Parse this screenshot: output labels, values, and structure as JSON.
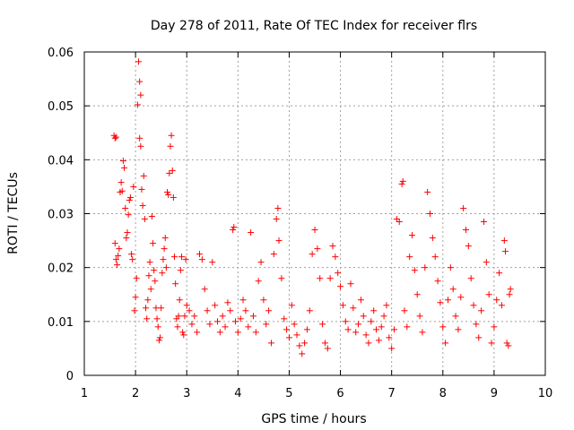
{
  "chart_data": {
    "type": "scatter",
    "title": "Day 278 of 2011, Rate Of TEC Index for receiver flrs",
    "xlabel": "GPS time / hours",
    "ylabel": "ROTI / TECUs",
    "xlim": [
      1,
      10
    ],
    "ylim": [
      0,
      0.06
    ],
    "xticks": [
      1,
      2,
      3,
      4,
      5,
      6,
      7,
      8,
      9,
      10
    ],
    "xtick_labels": [
      "1",
      "2",
      "3",
      "4",
      "5",
      "6",
      "7",
      "8",
      "9",
      "10"
    ],
    "yticks": [
      0,
      0.01,
      0.02,
      0.03,
      0.04,
      0.05,
      0.06
    ],
    "ytick_labels": [
      "0",
      "0.01",
      "0.02",
      "0.03",
      "0.04",
      "0.05",
      "0.06"
    ],
    "grid": true,
    "marker": "plus",
    "color": "#ff0000",
    "series": [
      {
        "name": "flrs",
        "points": [
          [
            1.58,
            0.0445
          ],
          [
            1.6,
            0.044
          ],
          [
            1.62,
            0.0442
          ],
          [
            1.6,
            0.0245
          ],
          [
            1.62,
            0.0215
          ],
          [
            1.64,
            0.0205
          ],
          [
            1.66,
            0.0222
          ],
          [
            1.68,
            0.0235
          ],
          [
            1.7,
            0.034
          ],
          [
            1.72,
            0.0358
          ],
          [
            1.74,
            0.0342
          ],
          [
            1.76,
            0.0398
          ],
          [
            1.78,
            0.0385
          ],
          [
            1.8,
            0.031
          ],
          [
            1.82,
            0.0255
          ],
          [
            1.84,
            0.0265
          ],
          [
            1.86,
            0.0298
          ],
          [
            1.88,
            0.0325
          ],
          [
            1.9,
            0.033
          ],
          [
            1.92,
            0.0225
          ],
          [
            1.94,
            0.0215
          ],
          [
            1.96,
            0.035
          ],
          [
            1.98,
            0.012
          ],
          [
            2.0,
            0.0145
          ],
          [
            2.02,
            0.018
          ],
          [
            2.04,
            0.0502
          ],
          [
            2.06,
            0.0582
          ],
          [
            2.08,
            0.0545
          ],
          [
            2.1,
            0.052
          ],
          [
            2.08,
            0.044
          ],
          [
            2.1,
            0.0425
          ],
          [
            2.12,
            0.0345
          ],
          [
            2.14,
            0.0315
          ],
          [
            2.16,
            0.037
          ],
          [
            2.18,
            0.029
          ],
          [
            2.2,
            0.0125
          ],
          [
            2.22,
            0.0105
          ],
          [
            2.24,
            0.014
          ],
          [
            2.26,
            0.0185
          ],
          [
            2.28,
            0.021
          ],
          [
            2.3,
            0.016
          ],
          [
            2.32,
            0.0295
          ],
          [
            2.34,
            0.0245
          ],
          [
            2.36,
            0.0195
          ],
          [
            2.38,
            0.0175
          ],
          [
            2.4,
            0.0125
          ],
          [
            2.42,
            0.0105
          ],
          [
            2.44,
            0.009
          ],
          [
            2.46,
            0.0065
          ],
          [
            2.48,
            0.007
          ],
          [
            2.5,
            0.0125
          ],
          [
            2.52,
            0.019
          ],
          [
            2.54,
            0.0215
          ],
          [
            2.56,
            0.0235
          ],
          [
            2.58,
            0.0255
          ],
          [
            2.6,
            0.02
          ],
          [
            2.62,
            0.034
          ],
          [
            2.64,
            0.0335
          ],
          [
            2.66,
            0.0375
          ],
          [
            2.68,
            0.0425
          ],
          [
            2.7,
            0.0445
          ],
          [
            2.72,
            0.038
          ],
          [
            2.74,
            0.033
          ],
          [
            2.76,
            0.022
          ],
          [
            2.78,
            0.017
          ],
          [
            2.8,
            0.0105
          ],
          [
            2.82,
            0.009
          ],
          [
            2.84,
            0.011
          ],
          [
            2.86,
            0.014
          ],
          [
            2.88,
            0.0195
          ],
          [
            2.9,
            0.022
          ],
          [
            2.92,
            0.008
          ],
          [
            2.94,
            0.0075
          ],
          [
            2.96,
            0.011
          ],
          [
            2.98,
            0.0215
          ],
          [
            3.0,
            0.013
          ],
          [
            3.05,
            0.012
          ],
          [
            3.1,
            0.0095
          ],
          [
            3.15,
            0.011
          ],
          [
            3.2,
            0.008
          ],
          [
            3.25,
            0.0225
          ],
          [
            3.3,
            0.0215
          ],
          [
            3.35,
            0.016
          ],
          [
            3.4,
            0.012
          ],
          [
            3.45,
            0.0095
          ],
          [
            3.5,
            0.021
          ],
          [
            3.55,
            0.013
          ],
          [
            3.6,
            0.01
          ],
          [
            3.65,
            0.008
          ],
          [
            3.7,
            0.011
          ],
          [
            3.75,
            0.009
          ],
          [
            3.8,
            0.0135
          ],
          [
            3.85,
            0.012
          ],
          [
            3.9,
            0.027
          ],
          [
            3.92,
            0.0275
          ],
          [
            3.95,
            0.01
          ],
          [
            4.0,
            0.008
          ],
          [
            4.05,
            0.0105
          ],
          [
            4.1,
            0.014
          ],
          [
            4.15,
            0.012
          ],
          [
            4.2,
            0.009
          ],
          [
            4.25,
            0.0265
          ],
          [
            4.3,
            0.011
          ],
          [
            4.35,
            0.008
          ],
          [
            4.4,
            0.0175
          ],
          [
            4.45,
            0.021
          ],
          [
            4.5,
            0.014
          ],
          [
            4.55,
            0.0095
          ],
          [
            4.6,
            0.012
          ],
          [
            4.65,
            0.006
          ],
          [
            4.7,
            0.0225
          ],
          [
            4.75,
            0.029
          ],
          [
            4.78,
            0.031
          ],
          [
            4.8,
            0.025
          ],
          [
            4.85,
            0.018
          ],
          [
            4.9,
            0.0105
          ],
          [
            4.95,
            0.0085
          ],
          [
            5.0,
            0.007
          ],
          [
            5.05,
            0.013
          ],
          [
            5.1,
            0.0095
          ],
          [
            5.15,
            0.0075
          ],
          [
            5.2,
            0.0055
          ],
          [
            5.25,
            0.004
          ],
          [
            5.3,
            0.006
          ],
          [
            5.35,
            0.0085
          ],
          [
            5.4,
            0.012
          ],
          [
            5.45,
            0.0225
          ],
          [
            5.5,
            0.027
          ],
          [
            5.55,
            0.0235
          ],
          [
            5.6,
            0.018
          ],
          [
            5.65,
            0.0095
          ],
          [
            5.7,
            0.006
          ],
          [
            5.75,
            0.005
          ],
          [
            5.8,
            0.018
          ],
          [
            5.85,
            0.024
          ],
          [
            5.9,
            0.022
          ],
          [
            5.95,
            0.019
          ],
          [
            6.0,
            0.0165
          ],
          [
            6.05,
            0.013
          ],
          [
            6.1,
            0.01
          ],
          [
            6.15,
            0.0085
          ],
          [
            6.2,
            0.017
          ],
          [
            6.25,
            0.0125
          ],
          [
            6.3,
            0.008
          ],
          [
            6.35,
            0.0095
          ],
          [
            6.4,
            0.014
          ],
          [
            6.45,
            0.011
          ],
          [
            6.5,
            0.0075
          ],
          [
            6.55,
            0.006
          ],
          [
            6.6,
            0.01
          ],
          [
            6.65,
            0.012
          ],
          [
            6.7,
            0.0085
          ],
          [
            6.75,
            0.0065
          ],
          [
            6.8,
            0.009
          ],
          [
            6.85,
            0.011
          ],
          [
            6.9,
            0.013
          ],
          [
            6.95,
            0.007
          ],
          [
            7.0,
            0.005
          ],
          [
            7.05,
            0.0085
          ],
          [
            7.1,
            0.029
          ],
          [
            7.15,
            0.0285
          ],
          [
            7.2,
            0.0355
          ],
          [
            7.22,
            0.036
          ],
          [
            7.25,
            0.012
          ],
          [
            7.3,
            0.009
          ],
          [
            7.35,
            0.022
          ],
          [
            7.4,
            0.026
          ],
          [
            7.45,
            0.0195
          ],
          [
            7.5,
            0.015
          ],
          [
            7.55,
            0.011
          ],
          [
            7.6,
            0.008
          ],
          [
            7.65,
            0.02
          ],
          [
            7.7,
            0.034
          ],
          [
            7.75,
            0.03
          ],
          [
            7.8,
            0.0255
          ],
          [
            7.85,
            0.022
          ],
          [
            7.9,
            0.0175
          ],
          [
            7.95,
            0.0135
          ],
          [
            8.0,
            0.009
          ],
          [
            8.05,
            0.006
          ],
          [
            8.1,
            0.014
          ],
          [
            8.15,
            0.02
          ],
          [
            8.2,
            0.016
          ],
          [
            8.25,
            0.011
          ],
          [
            8.3,
            0.0085
          ],
          [
            8.35,
            0.0145
          ],
          [
            8.4,
            0.031
          ],
          [
            8.45,
            0.027
          ],
          [
            8.5,
            0.024
          ],
          [
            8.55,
            0.018
          ],
          [
            8.6,
            0.013
          ],
          [
            8.65,
            0.0095
          ],
          [
            8.7,
            0.007
          ],
          [
            8.75,
            0.012
          ],
          [
            8.8,
            0.0285
          ],
          [
            8.85,
            0.021
          ],
          [
            8.9,
            0.015
          ],
          [
            8.95,
            0.006
          ],
          [
            9.0,
            0.009
          ],
          [
            9.05,
            0.014
          ],
          [
            9.1,
            0.019
          ],
          [
            9.15,
            0.013
          ],
          [
            9.2,
            0.025
          ],
          [
            9.22,
            0.023
          ],
          [
            9.25,
            0.006
          ],
          [
            9.28,
            0.0055
          ],
          [
            9.3,
            0.015
          ],
          [
            9.32,
            0.016
          ]
        ]
      }
    ]
  }
}
